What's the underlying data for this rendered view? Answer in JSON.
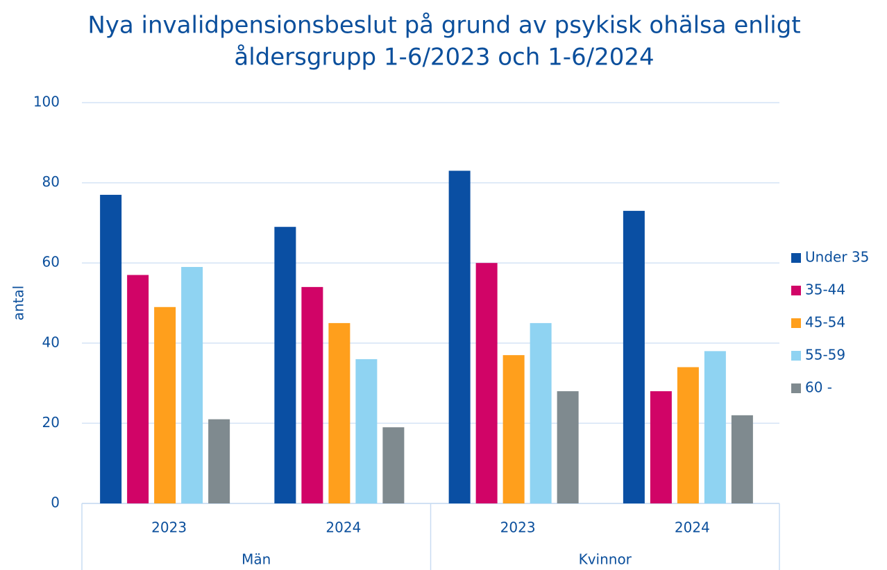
{
  "chart_data": {
    "type": "bar",
    "title": [
      "Nya invalidpensionsbeslut på grund av psykisk ohälsa enligt",
      "åldersgrupp 1-6/2023 och 1-6/2024"
    ],
    "y_label": "antal",
    "groups": [
      "Män",
      "Kvinnor"
    ],
    "categories": [
      "2023",
      "2024",
      "2023",
      "2024"
    ],
    "series": [
      {
        "name": "Under 35",
        "color": "#0a4fa3",
        "values": [
          77,
          69,
          83,
          73
        ]
      },
      {
        "name": "35-44",
        "color": "#d10467",
        "values": [
          57,
          54,
          60,
          28
        ]
      },
      {
        "name": "45-54",
        "color": "#ff9f1c",
        "values": [
          49,
          45,
          37,
          34
        ]
      },
      {
        "name": "55-59",
        "color": "#8fd3f2",
        "values": [
          59,
          36,
          45,
          38
        ]
      },
      {
        "name": "60 -",
        "color": "#7f8a8f",
        "values": [
          21,
          19,
          28,
          22
        ]
      }
    ],
    "ylim": [
      0,
      100
    ],
    "yticks": [
      0,
      20,
      40,
      60,
      80,
      100
    ],
    "grid": true,
    "legend": "right"
  }
}
